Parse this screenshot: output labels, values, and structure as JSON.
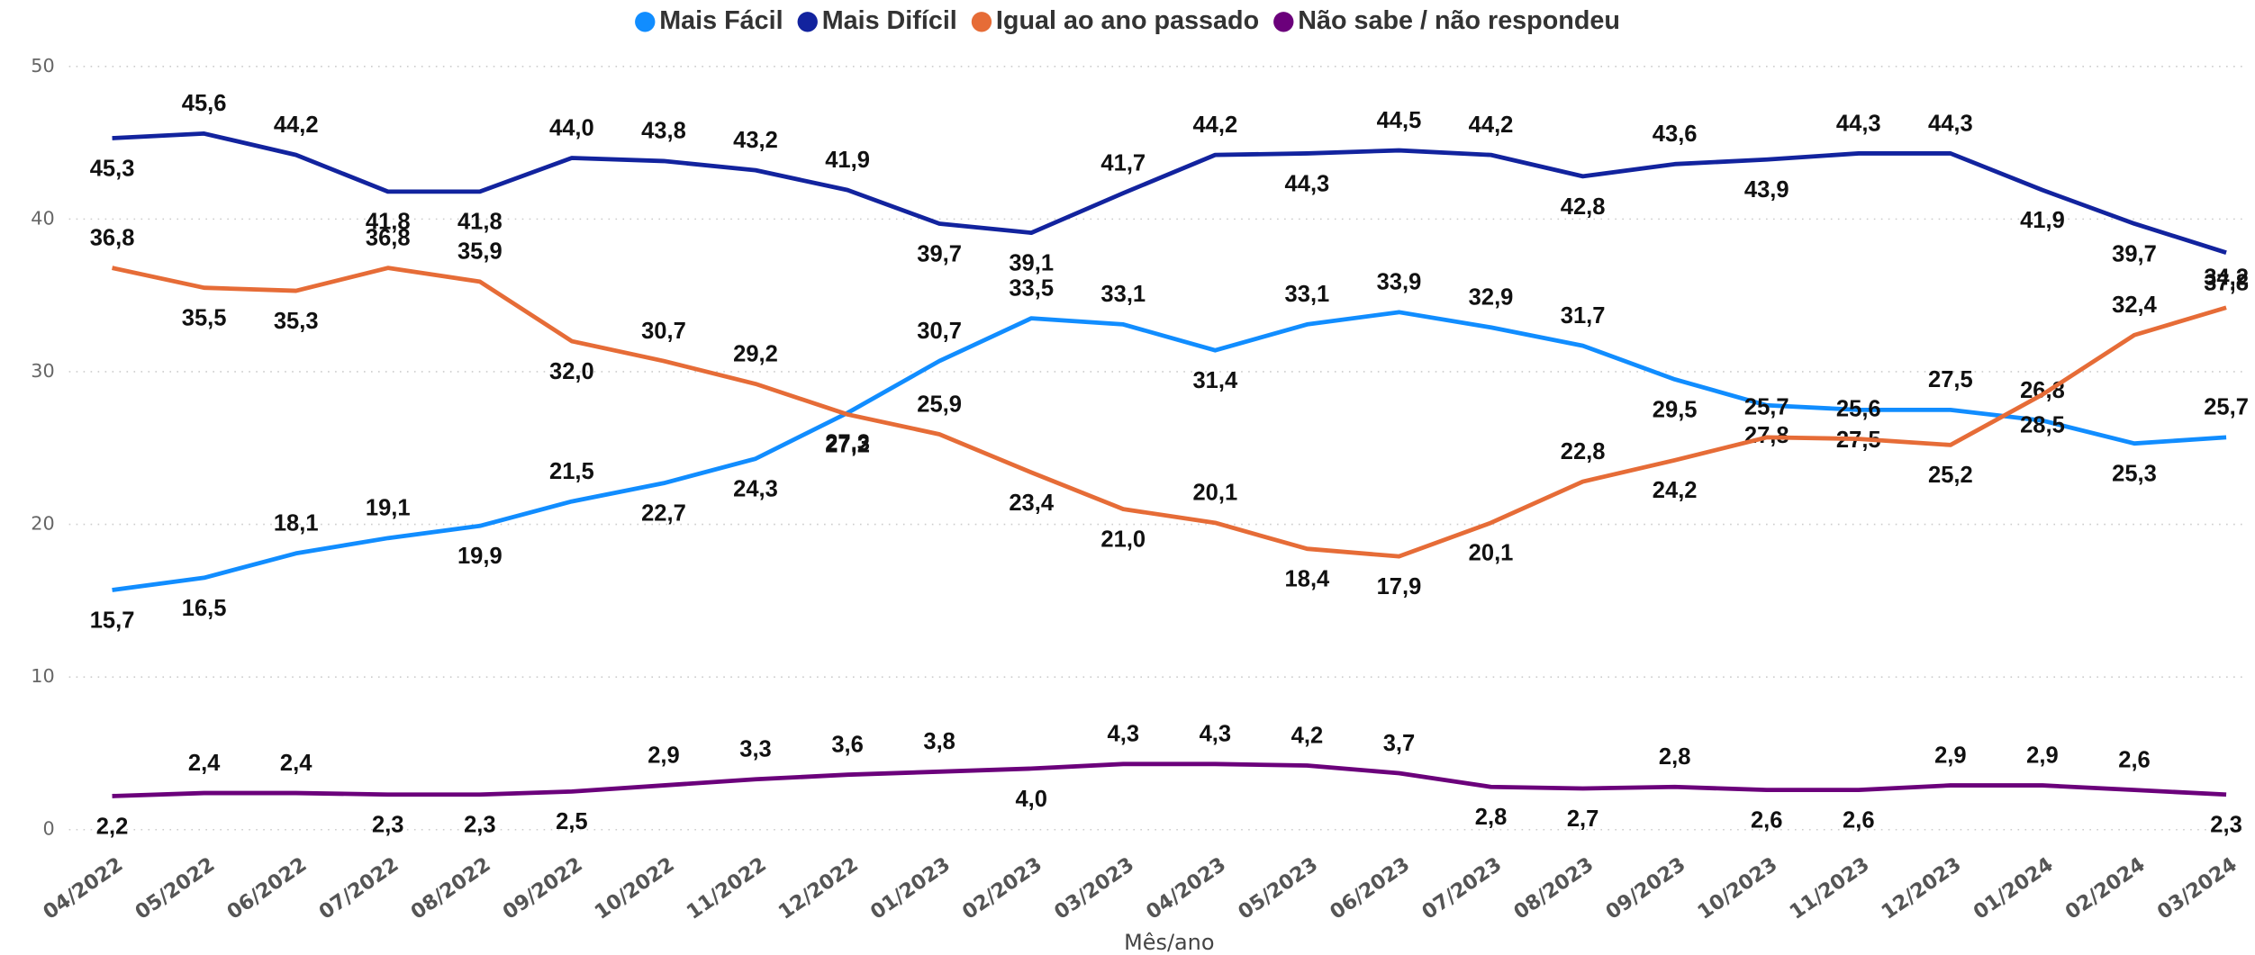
{
  "chart_data": {
    "type": "line",
    "x_label": "Mês/ano",
    "categories": [
      "04/2022",
      "05/2022",
      "06/2022",
      "07/2022",
      "08/2022",
      "09/2022",
      "10/2022",
      "11/2022",
      "12/2022",
      "01/2023",
      "02/2023",
      "03/2023",
      "04/2023",
      "05/2023",
      "06/2023",
      "07/2023",
      "08/2023",
      "09/2023",
      "10/2023",
      "11/2023",
      "12/2023",
      "01/2024",
      "02/2024",
      "03/2024"
    ],
    "ylim": [
      0,
      50
    ],
    "yticks": [
      0,
      10,
      20,
      30,
      40,
      50
    ],
    "grid": true,
    "legend": "top",
    "series": [
      {
        "name": "Mais Fácil",
        "color": "#118DFF",
        "values": [
          15.7,
          16.5,
          18.1,
          19.1,
          19.9,
          21.5,
          22.7,
          24.3,
          27.3,
          30.7,
          33.5,
          33.1,
          31.4,
          33.1,
          33.9,
          32.9,
          31.7,
          29.5,
          27.8,
          27.5,
          27.5,
          26.8,
          25.3,
          25.7
        ],
        "value_labels": [
          "15,7",
          "16,5",
          "18,1",
          "19,1",
          "19,9",
          "21,5",
          "22,7",
          "24,3",
          "27,3",
          "30,7",
          "33,5",
          "33,1",
          "31,4",
          "33,1",
          "33,9",
          "32,9",
          "31,7",
          "29,5",
          "27,8",
          "27,5",
          "27,5",
          "26,8",
          "25,3",
          "25,7"
        ]
      },
      {
        "name": "Mais Difícil",
        "color": "#12239E",
        "values": [
          45.3,
          45.6,
          44.2,
          41.8,
          41.8,
          44.0,
          43.8,
          43.2,
          41.9,
          39.7,
          39.1,
          41.7,
          44.2,
          44.3,
          44.5,
          44.2,
          42.8,
          43.6,
          43.9,
          44.3,
          44.3,
          41.9,
          39.7,
          37.8
        ],
        "value_labels": [
          "45,3",
          "45,6",
          "44,2",
          "41,8",
          "41,8",
          "44,0",
          "43,8",
          "43,2",
          "41,9",
          "39,7",
          "39,1",
          "41,7",
          "44,2",
          "44,3",
          "44,5",
          "44,2",
          "42,8",
          "43,6",
          "43,9",
          "44,3",
          "44,3",
          "41,9",
          "39,7",
          "37,8"
        ]
      },
      {
        "name": "Igual ao ano passado",
        "color": "#E66C37",
        "values": [
          36.8,
          35.5,
          35.3,
          36.8,
          35.9,
          32.0,
          30.7,
          29.2,
          27.2,
          25.9,
          23.4,
          21.0,
          20.1,
          18.4,
          17.9,
          20.1,
          22.8,
          24.2,
          25.7,
          25.6,
          25.2,
          28.5,
          32.4,
          34.2
        ],
        "value_labels": [
          "36,8",
          "35,5",
          "35,3",
          "36,8",
          "35,9",
          "32,0",
          "30,7",
          "29,2",
          "27,2",
          "25,9",
          "23,4",
          "21,0",
          "20,1",
          "18,4",
          "17,9",
          "20,1",
          "22,8",
          "24,2",
          "25,7",
          "25,6",
          "25,2",
          "28,5",
          "32,4",
          "34,2"
        ]
      },
      {
        "name": "Não sabe / não respondeu",
        "color": "#6B007B",
        "values": [
          2.2,
          2.4,
          2.4,
          2.3,
          2.3,
          2.5,
          2.9,
          3.3,
          3.6,
          3.8,
          4.0,
          4.3,
          4.3,
          4.2,
          3.7,
          2.8,
          2.7,
          2.8,
          2.6,
          2.6,
          2.9,
          2.9,
          2.6,
          2.3
        ],
        "value_labels": [
          "2,2",
          "2,4",
          "2,4",
          "2,3",
          "2,3",
          "2,5",
          "2,9",
          "3,3",
          "3,6",
          "3,8",
          "4,0",
          "4,3",
          "4,3",
          "4,2",
          "3,7",
          "2,8",
          "2,7",
          "2,8",
          "2,6",
          "2,6",
          "2,9",
          "2,9",
          "2,6",
          "2,3"
        ]
      }
    ]
  }
}
